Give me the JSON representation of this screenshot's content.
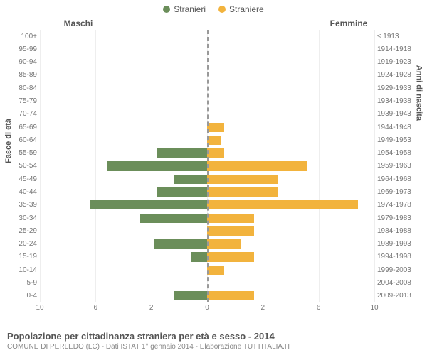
{
  "legend": {
    "male": {
      "label": "Stranieri",
      "color": "#6b8e5a"
    },
    "female": {
      "label": "Straniere",
      "color": "#f2b33d"
    }
  },
  "headers": {
    "male": "Maschi",
    "female": "Femmine"
  },
  "axis_titles": {
    "left": "Fasce di età",
    "right": "Anni di nascita"
  },
  "chart": {
    "type": "population-pyramid",
    "xmax": 10,
    "xticks": [
      10,
      6,
      2,
      0,
      2,
      6,
      10
    ],
    "grid_color": "#eeeeee",
    "centerline_color": "#999999",
    "background": "#ffffff",
    "bar_male_color": "#6b8e5a",
    "bar_female_color": "#f2b33d",
    "rows": [
      {
        "age": "100+",
        "birth": "≤ 1913",
        "m": 0,
        "f": 0
      },
      {
        "age": "95-99",
        "birth": "1914-1918",
        "m": 0,
        "f": 0
      },
      {
        "age": "90-94",
        "birth": "1919-1923",
        "m": 0,
        "f": 0
      },
      {
        "age": "85-89",
        "birth": "1924-1928",
        "m": 0,
        "f": 0
      },
      {
        "age": "80-84",
        "birth": "1929-1933",
        "m": 0,
        "f": 0
      },
      {
        "age": "75-79",
        "birth": "1934-1938",
        "m": 0,
        "f": 0
      },
      {
        "age": "70-74",
        "birth": "1939-1943",
        "m": 0,
        "f": 0
      },
      {
        "age": "65-69",
        "birth": "1944-1948",
        "m": 0,
        "f": 1
      },
      {
        "age": "60-64",
        "birth": "1949-1953",
        "m": 0,
        "f": 0.8
      },
      {
        "age": "55-59",
        "birth": "1954-1958",
        "m": 3,
        "f": 1
      },
      {
        "age": "50-54",
        "birth": "1959-1963",
        "m": 6,
        "f": 6
      },
      {
        "age": "45-49",
        "birth": "1964-1968",
        "m": 2,
        "f": 4.2
      },
      {
        "age": "40-44",
        "birth": "1969-1973",
        "m": 3,
        "f": 4.2
      },
      {
        "age": "35-39",
        "birth": "1974-1978",
        "m": 7,
        "f": 9
      },
      {
        "age": "30-34",
        "birth": "1979-1983",
        "m": 4,
        "f": 2.8
      },
      {
        "age": "25-29",
        "birth": "1984-1988",
        "m": 0,
        "f": 2.8
      },
      {
        "age": "20-24",
        "birth": "1989-1993",
        "m": 3.2,
        "f": 2
      },
      {
        "age": "15-19",
        "birth": "1994-1998",
        "m": 1,
        "f": 2.8
      },
      {
        "age": "10-14",
        "birth": "1999-2003",
        "m": 0,
        "f": 1
      },
      {
        "age": "5-9",
        "birth": "2004-2008",
        "m": 0,
        "f": 0
      },
      {
        "age": "0-4",
        "birth": "2009-2013",
        "m": 2,
        "f": 2.8
      }
    ]
  },
  "footer": {
    "title": "Popolazione per cittadinanza straniera per età e sesso - 2014",
    "subtitle": "COMUNE DI PERLEDO (LC) - Dati ISTAT 1° gennaio 2014 - Elaborazione TUTTITALIA.IT"
  }
}
